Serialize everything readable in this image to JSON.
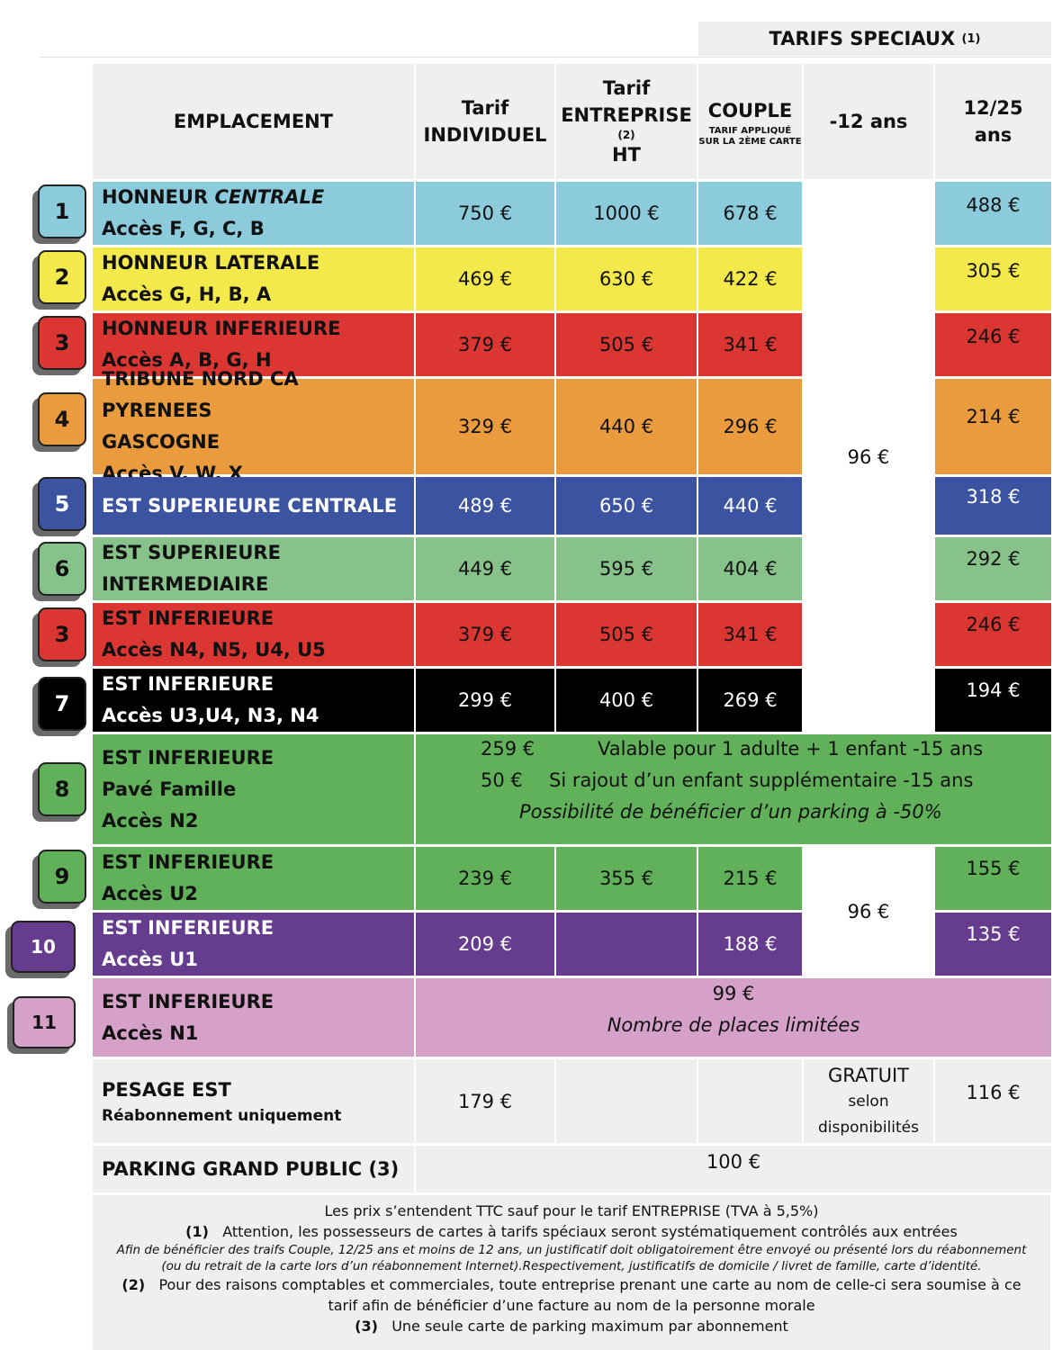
{
  "header": {
    "tarifs_speciaux": "TARIFS SPECIAUX",
    "tarifs_speciaux_note": "(1)",
    "emplacement": "EMPLACEMENT",
    "individuel_1": "Tarif",
    "individuel_2": "INDIVIDUEL",
    "entreprise_1": "Tarif",
    "entreprise_2": "ENTREPRISE",
    "entreprise_note": "(2)",
    "entreprise_3": "HT",
    "couple": "COUPLE",
    "couple_sub_1": "TARIF APPLIQUÉ",
    "couple_sub_2": "SUR LA 2ÈME CARTE",
    "moins12": "-12 ans",
    "age_12_25_1": "12/25",
    "age_12_25_2": "ans"
  },
  "colors": {
    "row1": "#8ccbdb",
    "row2": "#f4e94b",
    "row3": "#dc3632",
    "row4": "#ea9b3e",
    "row5": "#3c53a1",
    "row6": "#88c28b",
    "row7": "#000000",
    "row8": "#61b15a",
    "row9": "#61b15a",
    "row10": "#663c8e",
    "row11": "#d6a1c9",
    "header": "#efefef"
  },
  "rows": [
    {
      "badge": "1",
      "name_a": "HONNEUR ",
      "name_b": "CENTRALE",
      "access": "Accès F, G, C, B",
      "individuel": "750 €",
      "entreprise": "1000 €",
      "couple": "678 €",
      "age_12_25": "488 €"
    },
    {
      "badge": "2",
      "name": "HONNEUR LATERALE",
      "access": "Accès G, H, B, A",
      "individuel": "469 €",
      "entreprise": "630 €",
      "couple": "422 €",
      "age_12_25": "305 €"
    },
    {
      "badge": "3",
      "name": "HONNEUR INFERIEURE",
      "access": "Accès A, B, G, H",
      "individuel": "379 €",
      "entreprise": "505 €",
      "couple": "341 €",
      "age_12_25": "246 €"
    },
    {
      "badge": "4",
      "name_1": "TRIBUNE NORD CA PYRENEES",
      "name_2": "GASCOGNE",
      "access": "Accès V, W, X",
      "individuel": "329 €",
      "entreprise": "440 €",
      "couple": "296 €",
      "age_12_25": "214 €"
    },
    {
      "badge": "5",
      "name": "EST SUPERIEURE CENTRALE",
      "individuel": "489 €",
      "entreprise": "650 €",
      "couple": "440 €",
      "age_12_25": "318 €"
    },
    {
      "badge": "6",
      "name_1": "EST SUPERIEURE",
      "name_2": "INTERMEDIAIRE",
      "individuel": "449 €",
      "entreprise": "595 €",
      "couple": "404 €",
      "age_12_25": "292 €"
    },
    {
      "badge": "3",
      "name": "EST INFERIEURE",
      "access": "Accès N4, N5, U4, U5",
      "individuel": "379 €",
      "entreprise": "505 €",
      "couple": "341 €",
      "age_12_25": "246 €"
    },
    {
      "badge": "7",
      "name": "EST INFERIEURE",
      "access": "Accès U3,U4, N3, N4",
      "individuel": "299 €",
      "entreprise": "400 €",
      "couple": "269 €",
      "age_12_25": "194 €"
    },
    {
      "badge": "8",
      "name": "EST INFERIEURE",
      "sub": "Pavé Famille",
      "access": "Accès N2",
      "line1_price": "259 €",
      "line1_text": "Valable pour 1 adulte + 1 enfant -15 ans",
      "line2_price": "50 €",
      "line2_text": "Si rajout d’un enfant supplémentaire -15 ans",
      "line3": "Possibilité de bénéficier d’un parking à -50%"
    },
    {
      "badge": "9",
      "name": "EST INFERIEURE",
      "access": "Accès U2",
      "individuel": "239 €",
      "entreprise": "355 €",
      "couple": "215 €",
      "age_12_25": "155 €"
    },
    {
      "badge": "10",
      "name": "EST INFERIEURE",
      "access": "Accès U1",
      "individuel": "209 €",
      "entreprise": "",
      "couple": "188 €",
      "age_12_25": "135 €"
    },
    {
      "badge": "11",
      "name": "EST INFERIEURE",
      "access": "Accès N1",
      "price": "99 €",
      "note": "Nombre de places limitées"
    }
  ],
  "moins12_group1": "96 €",
  "moins12_group2": "96 €",
  "pesage": {
    "name": "PESAGE EST",
    "sub": "Réabonnement uniquement",
    "individuel": "179 €",
    "moins12_1": "GRATUIT",
    "moins12_2": "selon",
    "moins12_3": "disponibilités",
    "age_12_25": "116 €"
  },
  "parking": {
    "name": "PARKING GRAND PUBLIC (3)",
    "price": "100 €"
  },
  "notes": {
    "ttc": "Les prix s’entendent TTC sauf pour le tarif ENTREPRISE (TVA à 5,5%)",
    "n1_num": "(1)",
    "n1_text": "Attention, les possesseurs de cartes à tarifs spéciaux seront systématiquement contrôlés aux entrées",
    "n1_it1": "Afin de bénéficier des traifs Couple, 12/25 ans et moins de 12 ans, un justificatif doit obligatoirement être envoyé ou présenté lors du réabonnement",
    "n1_it2": "(ou du retrait de la carte lors d’un réabonnement Internet).Respectivement, justificatifs de domicile / livret de famille, carte d’identité.",
    "n2_num": "(2)",
    "n2_text1": "Pour des raisons comptables et commerciales, toute entreprise prenant une carte au nom de celle-ci sera soumise à ce",
    "n2_text2": "tarif afin de bénéficier d’une facture au nom de la personne morale",
    "n3_num": "(3)",
    "n3_text": "Une seule carte de parking maximum par abonnement"
  }
}
